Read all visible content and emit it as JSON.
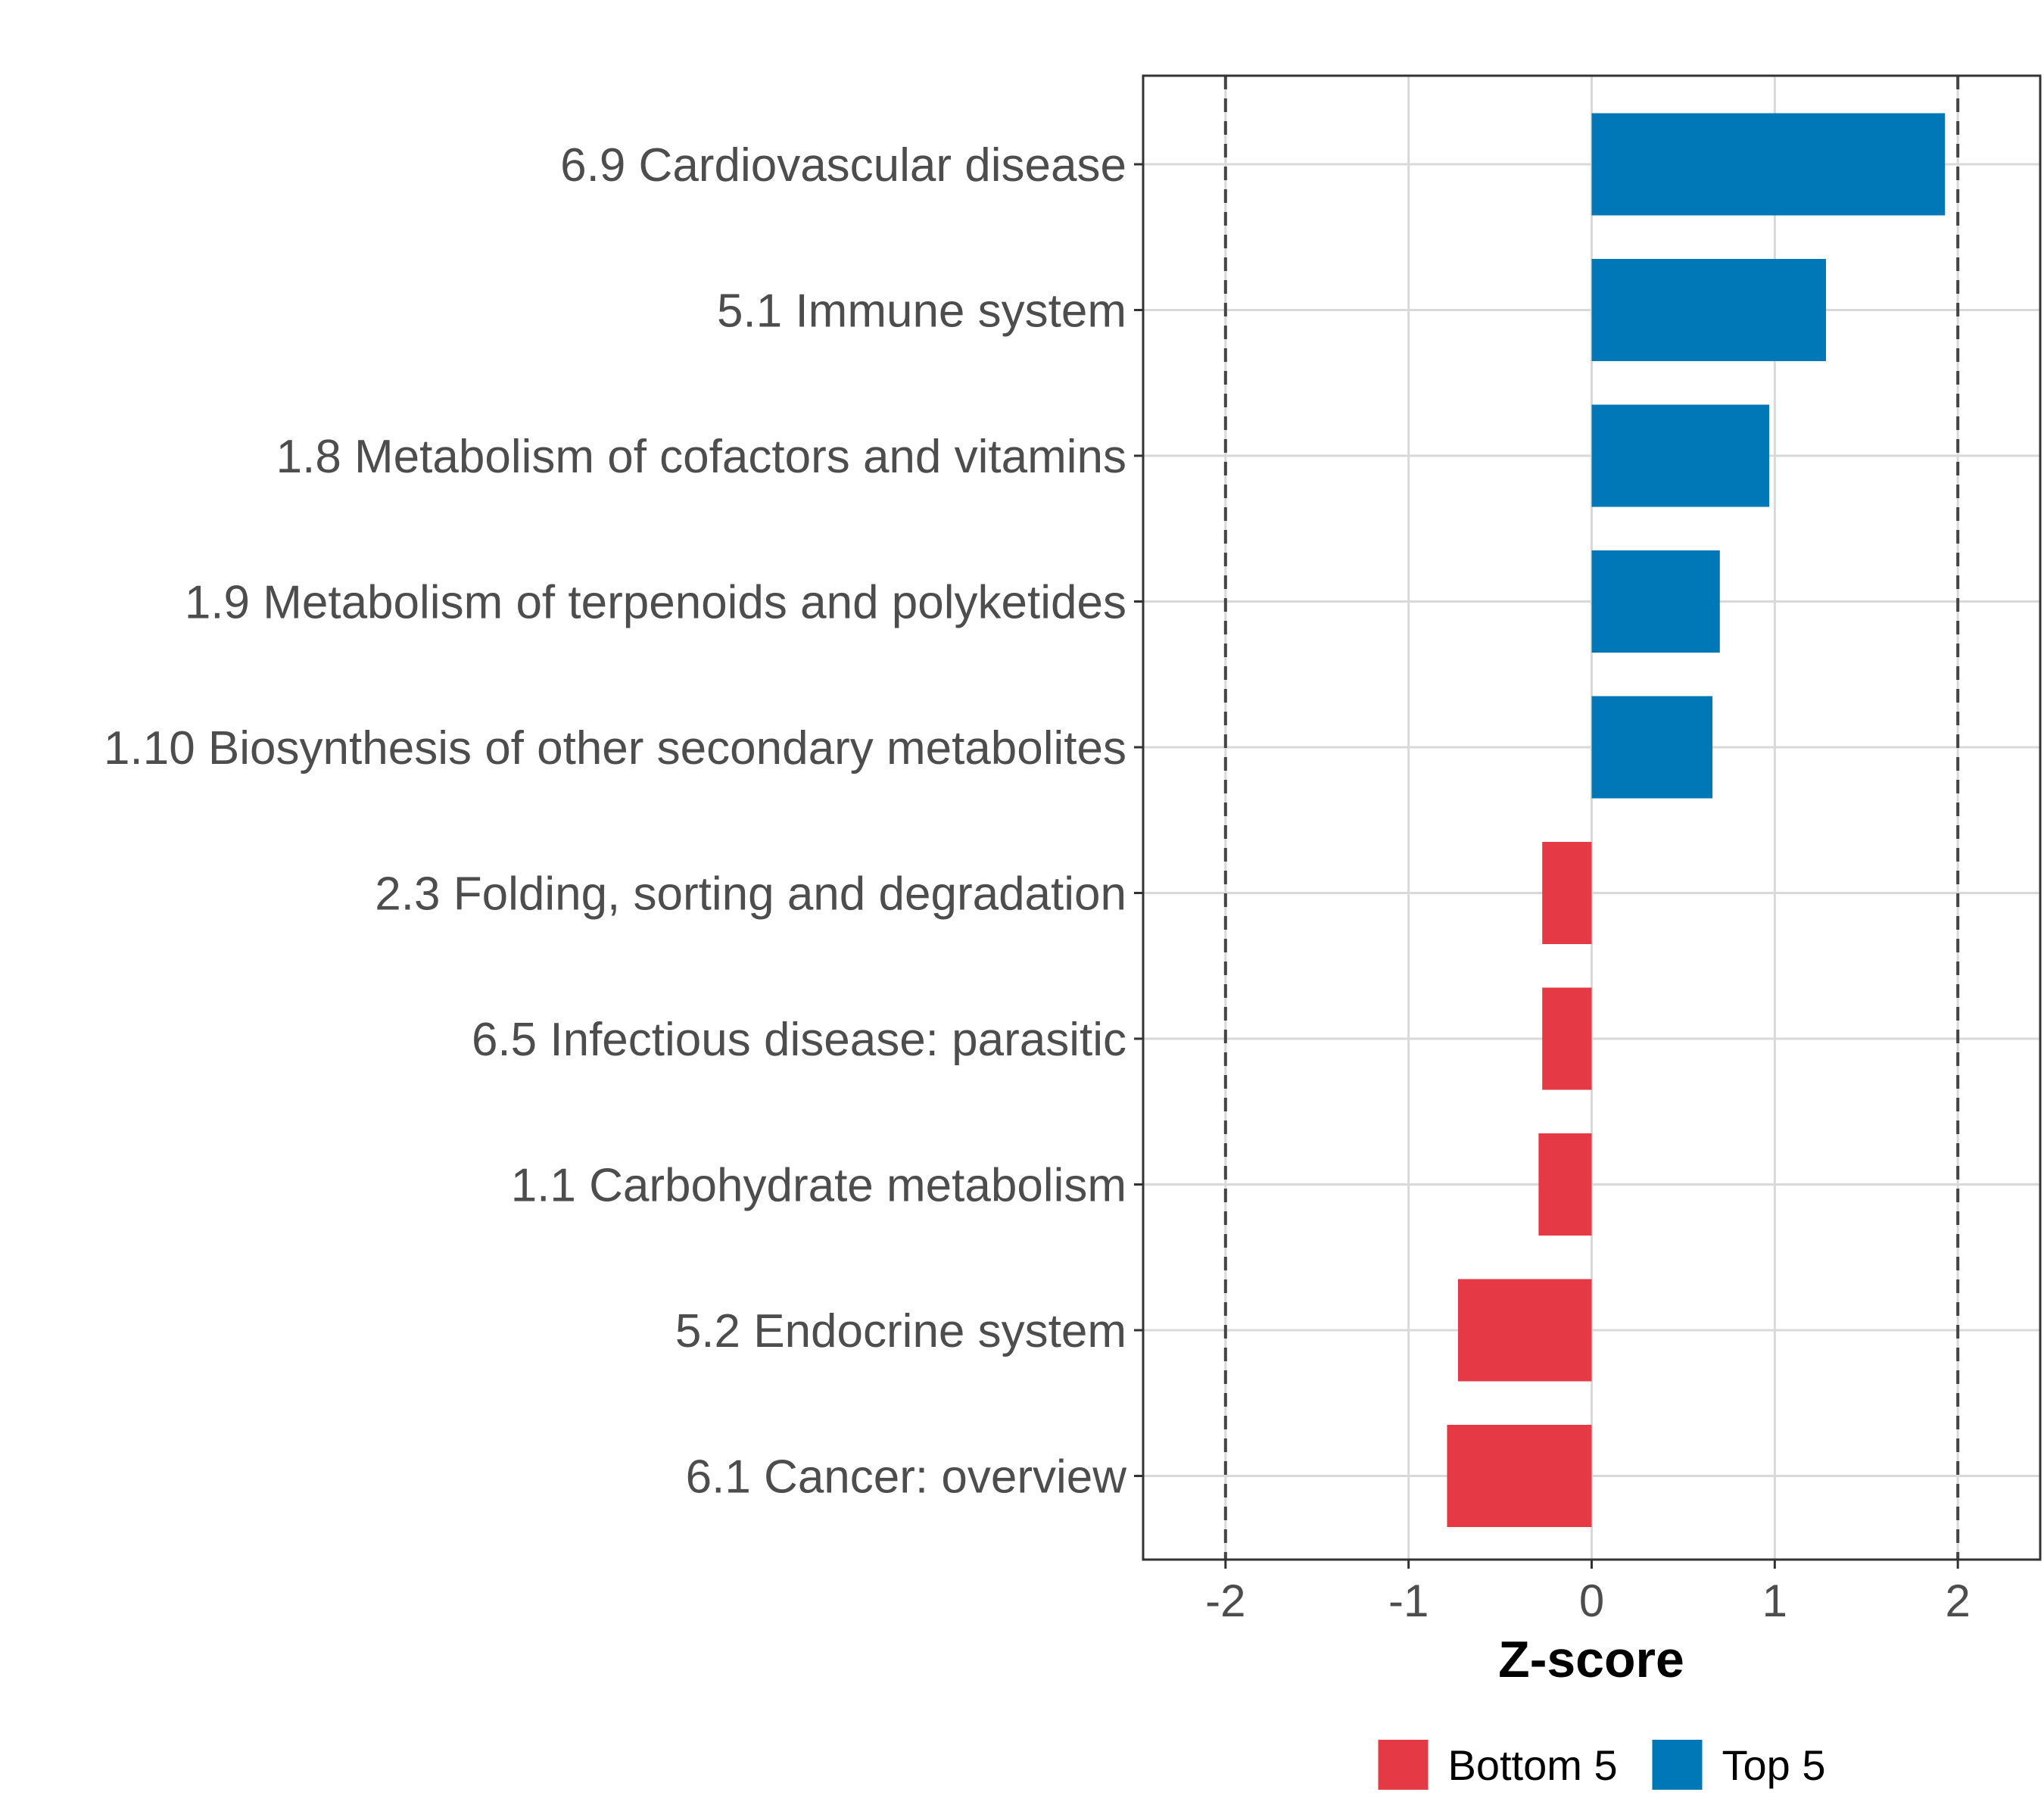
{
  "chart_data": {
    "type": "bar",
    "orientation": "horizontal",
    "categories": [
      "6.9 Cardiovascular disease",
      "5.1 Immune system",
      "1.8 Metabolism of cofactors and vitamins",
      "1.9 Metabolism of terpenoids and polyketides",
      "1.10 Biosynthesis of other secondary metabolites",
      "2.3 Folding, sorting and degradation",
      "6.5 Infectious disease: parasitic",
      "1.1 Carbohydrate metabolism",
      "5.2 Endocrine system",
      "6.1 Cancer: overview"
    ],
    "values": [
      1.93,
      1.28,
      0.97,
      0.7,
      0.66,
      -0.27,
      -0.27,
      -0.29,
      -0.73,
      -0.79
    ],
    "groups": [
      "Top 5",
      "Top 5",
      "Top 5",
      "Top 5",
      "Top 5",
      "Bottom 5",
      "Bottom 5",
      "Bottom 5",
      "Bottom 5",
      "Bottom 5"
    ],
    "xlabel": "Z-score",
    "ylabel": "",
    "xlim": [
      -2.45,
      2.45
    ],
    "xticks": [
      -2,
      -1,
      0,
      1,
      2
    ],
    "xtick_labels": [
      "-2",
      "-1",
      "0",
      "1",
      "2"
    ],
    "reference_lines": [
      -2,
      2
    ],
    "grid": true,
    "legend_position": "bottom",
    "legend": [
      {
        "label": "Bottom 5",
        "color": "#E63946"
      },
      {
        "label": "Top 5",
        "color": "#0077B6"
      }
    ],
    "colors": {
      "Top 5": "#0077B6",
      "Bottom 5": "#E63946"
    }
  }
}
